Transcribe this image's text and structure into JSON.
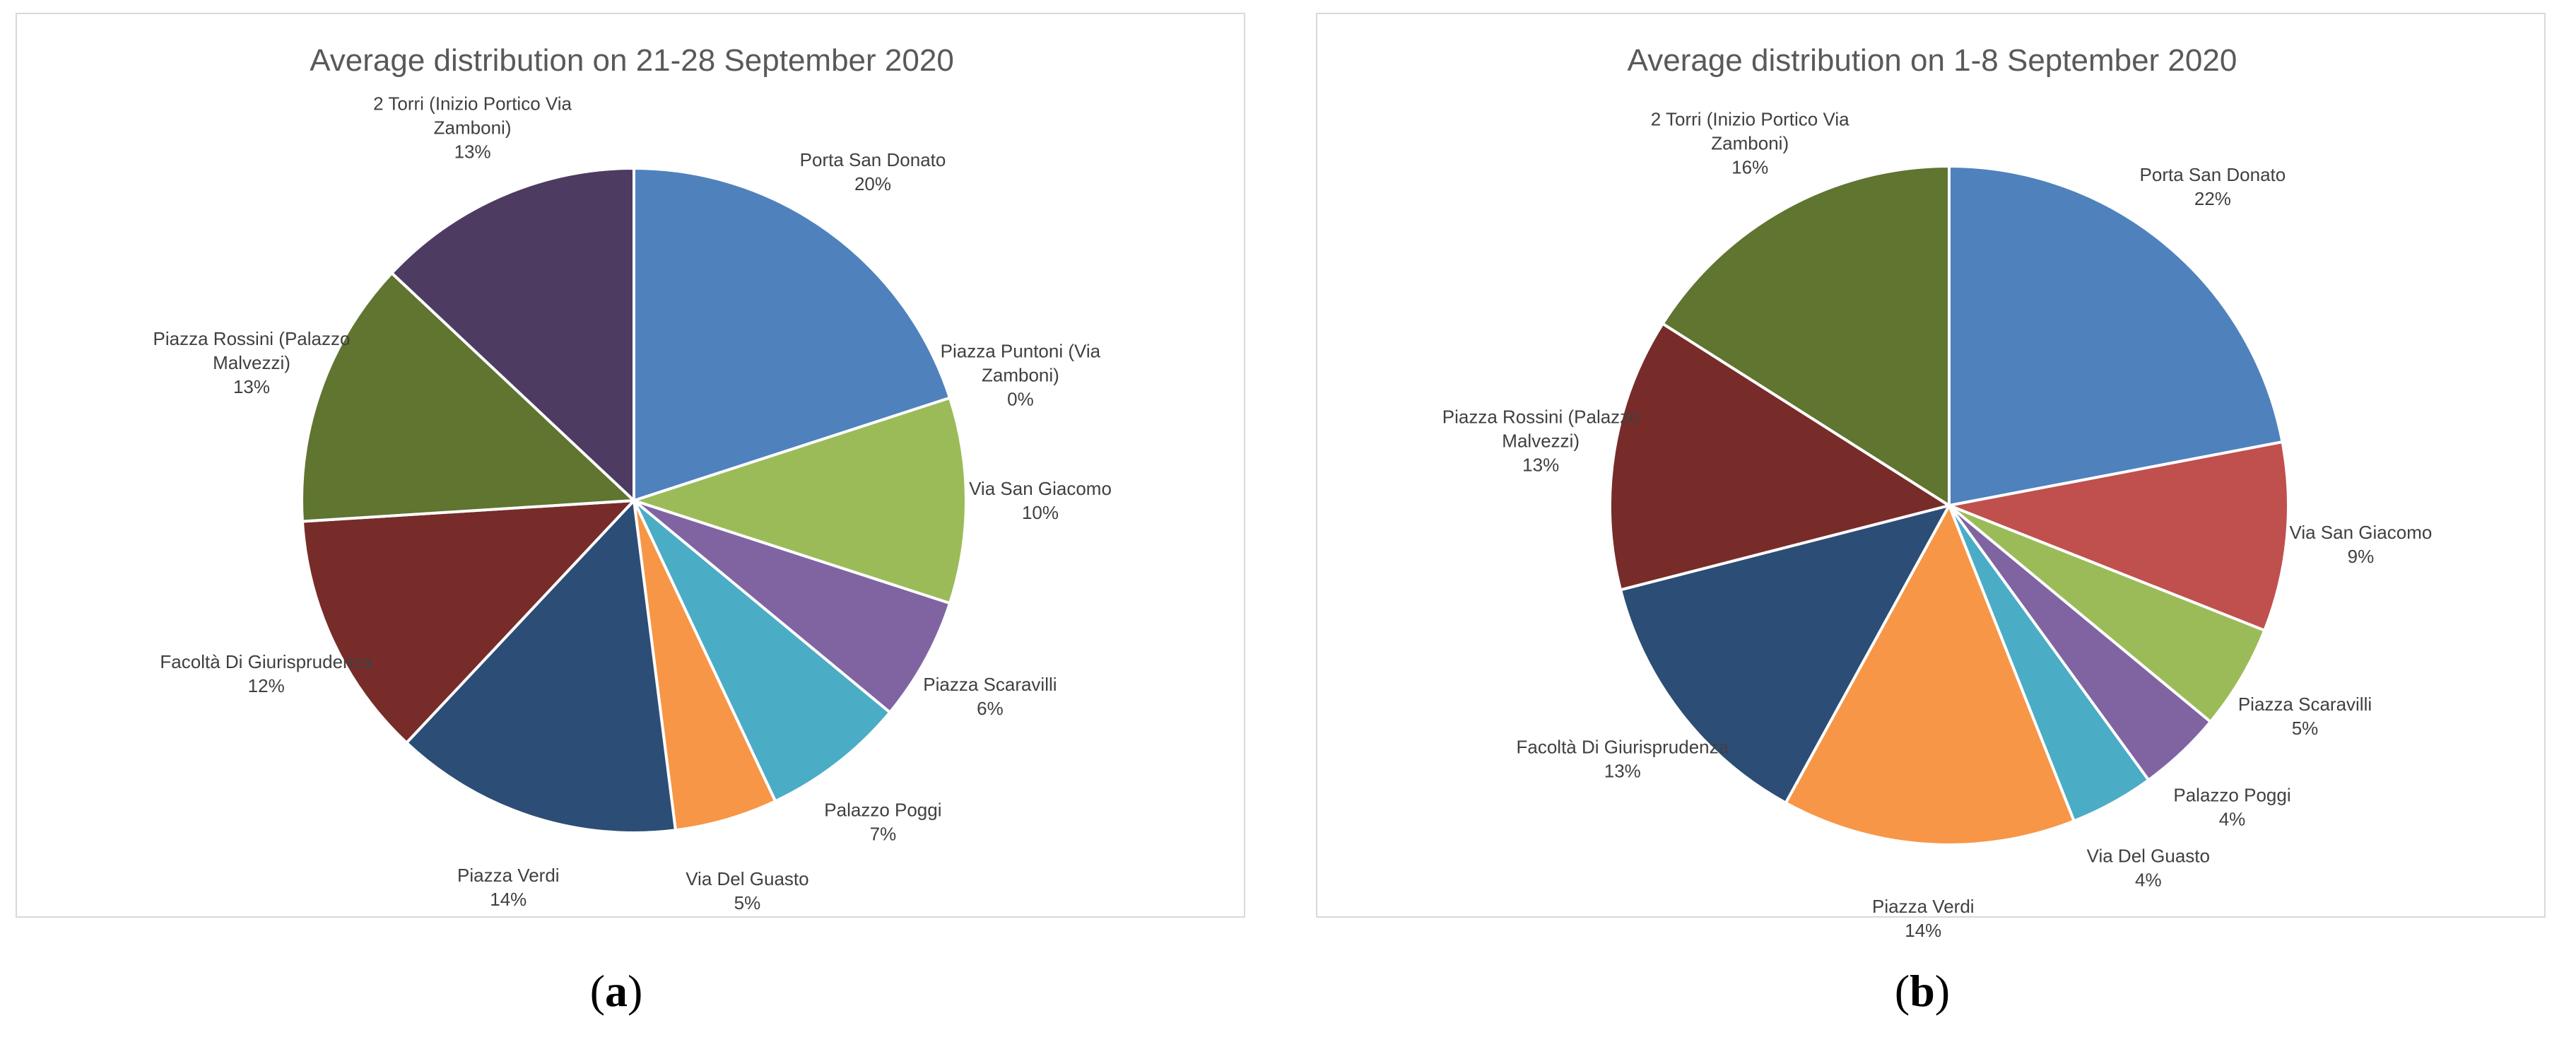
{
  "colors": {
    "blue": "#4f81bd",
    "red": "#c0504d",
    "green": "#9bbb59",
    "purple": "#8064a2",
    "teal": "#4bacc6",
    "orange": "#f79646",
    "navy": "#2c4d75",
    "maroon": "#772c2a",
    "olive": "#5f7530",
    "plum": "#4d3b62"
  },
  "captions": [
    {
      "letter": "a"
    },
    {
      "letter": "b"
    }
  ],
  "chart_data": [
    {
      "type": "pie",
      "title": "Average distribution on 21-28 September 2020",
      "start_angle_deg": 0,
      "direction": "clockwise",
      "slices": [
        {
          "label": [
            "Porta San Donato"
          ],
          "pct": "20%",
          "value": 20,
          "color": "#4f81bd"
        },
        {
          "label": [
            "Piazza Puntoni (Via",
            "Zamboni)"
          ],
          "pct": "0%",
          "value": 0,
          "color": "#c0504d"
        },
        {
          "label": [
            "Via San Giacomo"
          ],
          "pct": "10%",
          "value": 10,
          "color": "#9bbb59"
        },
        {
          "label": [
            "Piazza Scaravilli"
          ],
          "pct": "6%",
          "value": 6,
          "color": "#8064a2"
        },
        {
          "label": [
            "Palazzo Poggi"
          ],
          "pct": "7%",
          "value": 7,
          "color": "#4bacc6"
        },
        {
          "label": [
            "Via Del Guasto"
          ],
          "pct": "5%",
          "value": 5,
          "color": "#f79646"
        },
        {
          "label": [
            "Piazza Verdi"
          ],
          "pct": "14%",
          "value": 14,
          "color": "#2c4d75"
        },
        {
          "label": [
            "Facoltà Di Giurisprudenza"
          ],
          "pct": "12%",
          "value": 12,
          "color": "#772c2a"
        },
        {
          "label": [
            "Piazza Rossini (Palazzo",
            "Malvezzi)"
          ],
          "pct": "13%",
          "value": 13,
          "color": "#5f7530"
        },
        {
          "label": [
            "2 Torri (Inizio Portico Via",
            "Zamboni)"
          ],
          "pct": "13%",
          "value": 13,
          "color": "#4d3b62"
        }
      ]
    },
    {
      "type": "pie",
      "title": "Average distribution on 1-8 September 2020",
      "start_angle_deg": 0,
      "direction": "clockwise",
      "slices": [
        {
          "label": [
            "Porta San Donato"
          ],
          "pct": "22%",
          "value": 22,
          "color": "#4f81bd"
        },
        {
          "label": [
            "Via San Giacomo"
          ],
          "pct": "9%",
          "value": 9,
          "color": "#c0504d"
        },
        {
          "label": [
            "Piazza Scaravilli"
          ],
          "pct": "5%",
          "value": 5,
          "color": "#9bbb59"
        },
        {
          "label": [
            "Palazzo Poggi"
          ],
          "pct": "4%",
          "value": 4,
          "color": "#8064a2"
        },
        {
          "label": [
            "Via Del Guasto"
          ],
          "pct": "4%",
          "value": 4,
          "color": "#4bacc6"
        },
        {
          "label": [
            "Piazza Verdi"
          ],
          "pct": "14%",
          "value": 14,
          "color": "#f79646"
        },
        {
          "label": [
            "Facoltà Di Giurisprudenza"
          ],
          "pct": "13%",
          "value": 13,
          "color": "#2c4d75"
        },
        {
          "label": [
            "Piazza Rossini (Palazzo",
            "Malvezzi)"
          ],
          "pct": "13%",
          "value": 13,
          "color": "#772c2a"
        },
        {
          "label": [
            "2 Torri (Inizio Portico Via",
            "Zamboni)"
          ],
          "pct": "16%",
          "value": 16,
          "color": "#5f7530"
        }
      ]
    }
  ]
}
